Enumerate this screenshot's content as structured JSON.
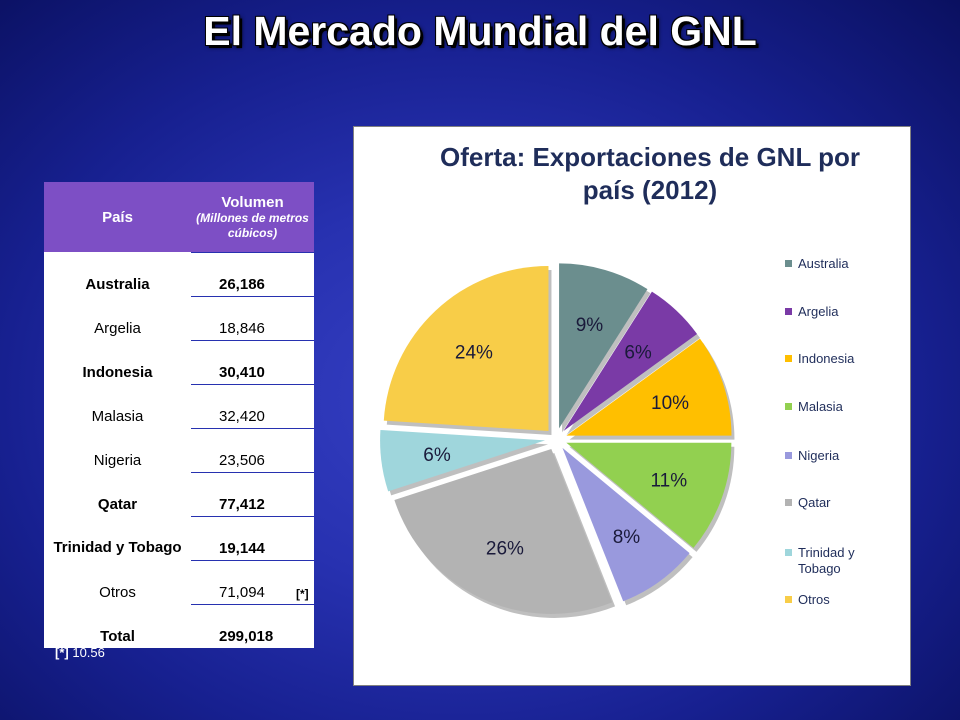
{
  "slide_title": "El Mercado Mundial del GNL",
  "table": {
    "header_country": "País",
    "header_volume": "Volumen",
    "header_volume_unit": "(Millones de metros cúbicos)",
    "rows": [
      {
        "country": "Australia",
        "volume": "26,186",
        "bold": true
      },
      {
        "country": "Argelia",
        "volume": "18,846",
        "bold": false
      },
      {
        "country": "Indonesia",
        "volume": "30,410",
        "bold": true
      },
      {
        "country": "Malasia",
        "volume": "32,420",
        "bold": false
      },
      {
        "country": "Nigeria",
        "volume": "23,506",
        "bold": false
      },
      {
        "country": "Qatar",
        "volume": "77,412",
        "bold": true
      },
      {
        "country": "Trinidad y Tobago",
        "volume": "19,144",
        "bold": true
      },
      {
        "country": "Otros",
        "volume": "71,094",
        "bold": false
      },
      {
        "country": "Total",
        "volume": "299,018",
        "bold": true
      }
    ],
    "total_note_mark": "[*]"
  },
  "footnote": {
    "mark": "[*]",
    "text": "10.56"
  },
  "chart_data": {
    "type": "pie",
    "title": "Oferta: Exportaciones de GNL por país (2012)",
    "legend_position": "right",
    "slices": [
      {
        "label": "Australia",
        "value": 9,
        "display": "9%",
        "color": "#6b8e8e"
      },
      {
        "label": "Argelia",
        "value": 6,
        "display": "6%",
        "color": "#7a3aa6"
      },
      {
        "label": "Indonesia",
        "value": 10,
        "display": "10%",
        "color": "#ffbf00"
      },
      {
        "label": "Malasia",
        "value": 11,
        "display": "11%",
        "color": "#92d050"
      },
      {
        "label": "Nigeria",
        "value": 8,
        "display": "8%",
        "color": "#9999dd"
      },
      {
        "label": "Qatar",
        "value": 26,
        "display": "26%",
        "color": "#b3b3b3"
      },
      {
        "label": "Trinidad y Tobago",
        "value": 6,
        "display": "6%",
        "color": "#9fd6dc"
      },
      {
        "label": "Otros",
        "value": 24,
        "display": "24%",
        "color": "#f8cd48"
      }
    ]
  }
}
